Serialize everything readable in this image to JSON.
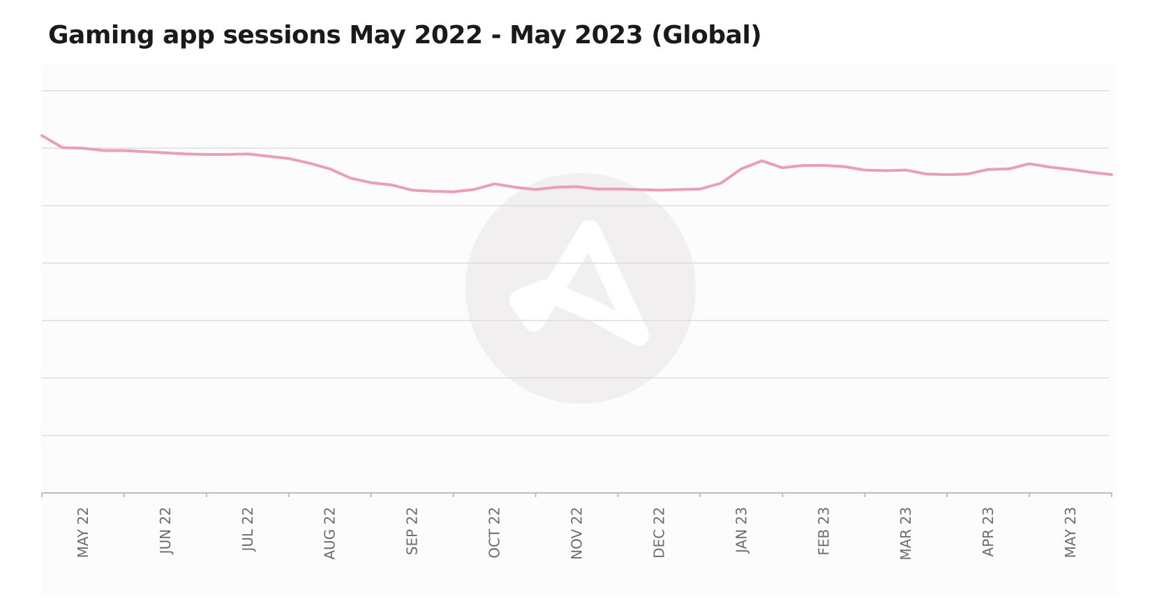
{
  "colors": {
    "line": "#EB9FB5",
    "grid": "#DCDCDC",
    "axis": "#BDBDBD",
    "watermark": "#F2EFF1",
    "title": "#1A1A1A",
    "tick_label": "#6B6B6B"
  },
  "chart_data": {
    "type": "line",
    "title": "Gaming app sessions May 2022 - May 2023 (Global)",
    "xlabel": "",
    "ylabel": "",
    "y_tick_labels_shown": false,
    "grid": "horizontal",
    "legend": "none",
    "categories": [
      "MAY 22",
      "JUN 22",
      "JUL 22",
      "AUG 22",
      "SEP 22",
      "OCT 22",
      "NOV 22",
      "DEC 22",
      "JAN 23",
      "FEB 23",
      "MAR 23",
      "APR 23",
      "MAY 23"
    ],
    "ylim": [
      0,
      7
    ],
    "x_unit": "month index (0 = May 2022)",
    "series": [
      {
        "x": [
          0,
          0.25,
          0.5,
          0.75,
          1.0,
          1.25,
          1.5,
          1.75,
          2.0,
          2.25,
          2.5,
          2.75,
          3.0,
          3.25,
          3.5,
          3.75,
          4.0,
          4.25,
          4.5,
          4.75,
          5.0,
          5.25,
          5.5,
          5.75,
          6.0,
          6.25,
          6.5,
          6.75,
          7.0,
          7.25,
          7.5,
          7.75,
          8.0,
          8.25,
          8.5,
          8.75,
          9.0,
          9.25,
          9.5,
          9.75,
          10.0,
          10.25,
          10.5,
          10.75,
          11.0,
          11.25,
          11.5,
          11.75,
          12.0,
          12.25,
          12.5,
          12.75,
          13.0
        ],
        "values": [
          6.22,
          6.01,
          6.0,
          5.96,
          5.96,
          5.94,
          5.92,
          5.9,
          5.89,
          5.89,
          5.9,
          5.86,
          5.82,
          5.74,
          5.64,
          5.48,
          5.4,
          5.36,
          5.27,
          5.25,
          5.24,
          5.28,
          5.38,
          5.32,
          5.28,
          5.32,
          5.33,
          5.29,
          5.29,
          5.28,
          5.27,
          5.28,
          5.29,
          5.39,
          5.64,
          5.78,
          5.66,
          5.7,
          5.7,
          5.68,
          5.62,
          5.61,
          5.62,
          5.55,
          5.54,
          5.55,
          5.63,
          5.64,
          5.73,
          5.67,
          5.63,
          5.58,
          5.54
        ]
      }
    ]
  }
}
